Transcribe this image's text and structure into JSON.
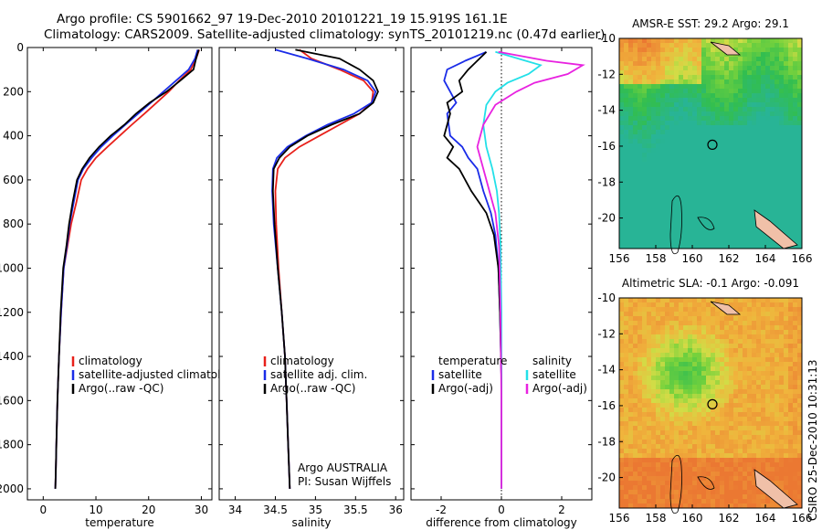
{
  "header": {
    "line1": "Argo profile: CS 5901662_97 19-Dec-2010 20101221_19 15.919S 161.1E",
    "line2": "Climatology: CARS2009. Satellite-adjusted climatology: synTS_20101219.nc (0.47d earlier)"
  },
  "side_note": "CSIRO 25-Dec-2010 10:31:13",
  "credit": {
    "line1": "Argo AUSTRALIA",
    "line2": "PI: Susan Wijffels"
  },
  "colors": {
    "climatology": "#e8201a",
    "satellite": "#1a2ce8",
    "argo": "#000000",
    "sat_salinity": "#22e0e8",
    "argo_salinity": "#e822e0"
  },
  "chart_data": [
    {
      "id": "temperature",
      "type": "line",
      "xlabel": "temperature",
      "ylabel": "",
      "xlim": [
        -3,
        32
      ],
      "ylim": [
        2050,
        0
      ],
      "xticks": [
        0,
        10,
        20,
        30
      ],
      "yticks": [
        0,
        200,
        400,
        600,
        800,
        1000,
        1200,
        1400,
        1600,
        1800,
        2000
      ],
      "legend": {
        "position": "lower-right",
        "entries": [
          "climatology",
          "satellite-adjusted climatology",
          "Argo(..raw -QC)"
        ]
      },
      "series": [
        {
          "name": "climatology",
          "color": "#e8201a",
          "x": [
            29.6,
            29.0,
            28.0,
            25.8,
            23.8,
            21.5,
            19.2,
            16.8,
            14.5,
            12.2,
            10.0,
            8.4,
            7.2,
            6.3,
            5.3,
            4.6,
            3.9,
            3.4,
            3.0,
            2.7,
            2.5,
            2.4,
            2.3
          ],
          "y": [
            10,
            50,
            100,
            150,
            200,
            250,
            300,
            350,
            400,
            450,
            500,
            550,
            600,
            700,
            800,
            900,
            1000,
            1200,
            1400,
            1600,
            1800,
            1900,
            2000
          ]
        },
        {
          "name": "satellite-adjusted climatology",
          "color": "#1a2ce8",
          "x": [
            29.3,
            28.8,
            27.6,
            25.2,
            22.8,
            20.4,
            18.0,
            15.6,
            13.2,
            11.0,
            9.2,
            7.6,
            6.6,
            5.8,
            5.0,
            4.5,
            3.9,
            3.4,
            3.0,
            2.7,
            2.5,
            2.4,
            2.3
          ],
          "y": [
            10,
            50,
            100,
            150,
            200,
            250,
            300,
            350,
            400,
            450,
            500,
            550,
            600,
            700,
            800,
            900,
            1000,
            1200,
            1400,
            1600,
            1800,
            1900,
            2000
          ]
        },
        {
          "name": "Argo(..raw -QC)",
          "color": "#000000",
          "x": [
            29.5,
            29.0,
            28.5,
            26.0,
            23.4,
            20.2,
            17.6,
            15.4,
            12.8,
            10.6,
            8.8,
            7.4,
            6.4,
            5.6,
            4.9,
            4.4,
            3.8,
            3.3,
            3.0,
            2.7,
            2.5,
            2.4,
            2.3
          ],
          "y": [
            10,
            50,
            100,
            150,
            200,
            250,
            300,
            350,
            400,
            450,
            500,
            550,
            600,
            700,
            800,
            900,
            1000,
            1200,
            1400,
            1600,
            1800,
            1900,
            2000
          ]
        }
      ]
    },
    {
      "id": "salinity",
      "type": "line",
      "xlabel": "salinity",
      "ylabel": "",
      "xlim": [
        33.8,
        36.1
      ],
      "ylim": [
        2050,
        0
      ],
      "xticks": [
        34,
        34.5,
        35,
        35.5,
        36
      ],
      "yticks": [
        0,
        200,
        400,
        600,
        800,
        1000,
        1200,
        1400,
        1600,
        1800,
        2000
      ],
      "legend": {
        "position": "lower-right",
        "entries": [
          "climatology",
          "satellite adj. clim.",
          "Argo(..raw -QC)"
        ]
      },
      "series": [
        {
          "name": "climatology",
          "color": "#e8201a",
          "x": [
            34.8,
            34.95,
            35.3,
            35.6,
            35.72,
            35.7,
            35.55,
            35.3,
            35.05,
            34.8,
            34.62,
            34.53,
            34.5,
            34.51,
            34.54,
            34.58,
            34.62,
            34.64,
            34.66,
            34.67,
            34.68
          ],
          "y": [
            10,
            50,
            100,
            150,
            200,
            250,
            300,
            350,
            400,
            450,
            500,
            550,
            650,
            800,
            1000,
            1200,
            1400,
            1600,
            1800,
            1900,
            2000
          ]
        },
        {
          "name": "satellite adj. clim.",
          "color": "#1a2ce8",
          "x": [
            34.5,
            34.9,
            35.35,
            35.65,
            35.75,
            35.7,
            35.48,
            35.15,
            34.88,
            34.65,
            34.52,
            34.47,
            34.46,
            34.48,
            34.53,
            34.58,
            34.62,
            34.64,
            34.66,
            34.67,
            34.68
          ],
          "y": [
            10,
            50,
            100,
            150,
            200,
            250,
            300,
            350,
            400,
            450,
            500,
            550,
            650,
            800,
            1000,
            1200,
            1400,
            1600,
            1800,
            1900,
            2000
          ]
        },
        {
          "name": "Argo(..raw -QC)",
          "color": "#000000",
          "x": [
            34.75,
            35.3,
            35.55,
            35.72,
            35.78,
            35.72,
            35.55,
            35.2,
            34.9,
            34.68,
            34.55,
            34.48,
            34.47,
            34.49,
            34.53,
            34.58,
            34.62,
            34.64,
            34.66,
            34.67,
            34.68
          ],
          "y": [
            10,
            50,
            100,
            150,
            200,
            250,
            300,
            350,
            400,
            450,
            500,
            550,
            650,
            800,
            1000,
            1200,
            1400,
            1600,
            1800,
            1900,
            2000
          ]
        }
      ]
    },
    {
      "id": "difference",
      "type": "line",
      "xlabel": "difference from climatology",
      "ylabel": "",
      "xlim": [
        -3.0,
        3.0
      ],
      "ylim": [
        2050,
        0
      ],
      "xticks": [
        -2,
        0,
        2
      ],
      "yticks": [
        0,
        200,
        400,
        600,
        800,
        1000,
        1200,
        1400,
        1600,
        1800,
        2000
      ],
      "legend": {
        "position": "lower",
        "groups": [
          {
            "title": "temperature",
            "entries": [
              "satellite",
              "Argo(-adj)"
            ]
          },
          {
            "title": "salinity",
            "entries": [
              "satellite",
              "Argo(-adj)"
            ]
          }
        ]
      },
      "series": [
        {
          "name": "temperature satellite",
          "color": "#1a2ce8",
          "x": [
            -0.5,
            -1.2,
            -1.8,
            -1.9,
            -1.7,
            -1.5,
            -1.8,
            -1.7,
            -1.3,
            -1.1,
            -0.8,
            -0.6,
            -0.35,
            -0.2,
            -0.1,
            -0.05,
            0.0,
            0.0,
            0.0
          ],
          "y": [
            20,
            60,
            100,
            150,
            200,
            250,
            300,
            400,
            450,
            500,
            550,
            650,
            750,
            850,
            1000,
            1200,
            1500,
            1800,
            2000
          ]
        },
        {
          "name": "temperature Argo(-adj)",
          "color": "#000000",
          "x": [
            -0.5,
            -0.8,
            -1.1,
            -1.4,
            -1.3,
            -1.8,
            -1.7,
            -1.9,
            -1.6,
            -1.8,
            -1.4,
            -1.0,
            -0.5,
            -0.25,
            -0.1,
            -0.05,
            0.0,
            0.0,
            0.0
          ],
          "y": [
            20,
            60,
            100,
            150,
            200,
            250,
            300,
            400,
            450,
            500,
            550,
            650,
            750,
            850,
            1000,
            1200,
            1500,
            1800,
            2000
          ]
        },
        {
          "name": "salinity satellite",
          "color": "#22e0e8",
          "x": [
            -0.2,
            0.8,
            1.3,
            0.9,
            0.2,
            -0.2,
            -0.5,
            -0.6,
            -0.5,
            -0.3,
            -0.15,
            -0.08,
            -0.03,
            0.0,
            0.0,
            0.0
          ],
          "y": [
            20,
            60,
            80,
            120,
            160,
            200,
            260,
            350,
            450,
            550,
            650,
            750,
            900,
            1200,
            1600,
            2000
          ]
        },
        {
          "name": "salinity Argo(-adj)",
          "color": "#e822e0",
          "x": [
            -0.1,
            1.5,
            2.7,
            2.2,
            1.1,
            0.5,
            -0.2,
            -0.6,
            -0.8,
            -0.6,
            -0.4,
            -0.2,
            -0.08,
            -0.03,
            0.0,
            0.0
          ],
          "y": [
            20,
            60,
            80,
            120,
            160,
            200,
            260,
            350,
            450,
            550,
            650,
            750,
            900,
            1200,
            1600,
            2000
          ]
        }
      ]
    },
    {
      "id": "sst_map",
      "type": "heatmap",
      "title": "AMSR-E SST: 29.2 Argo: 29.1",
      "xlim": [
        156,
        166
      ],
      "ylim": [
        -21.7,
        -10
      ],
      "xticks": [
        156,
        158,
        160,
        162,
        164,
        166
      ],
      "yticks": [
        -10,
        -12,
        -14,
        -16,
        -18,
        -20
      ],
      "marker": {
        "lon": 161.1,
        "lat": -15.919
      }
    },
    {
      "id": "sla_map",
      "type": "heatmap",
      "title": "Altimetric SLA: -0.1 Argo: -0.091",
      "xlim": [
        156,
        166
      ],
      "ylim": [
        -21.7,
        -10
      ],
      "xticks": [
        156,
        158,
        160,
        162,
        164,
        166
      ],
      "yticks": [
        -10,
        -12,
        -14,
        -16,
        -18,
        -20
      ],
      "marker": {
        "lon": 161.1,
        "lat": -15.919
      }
    }
  ]
}
